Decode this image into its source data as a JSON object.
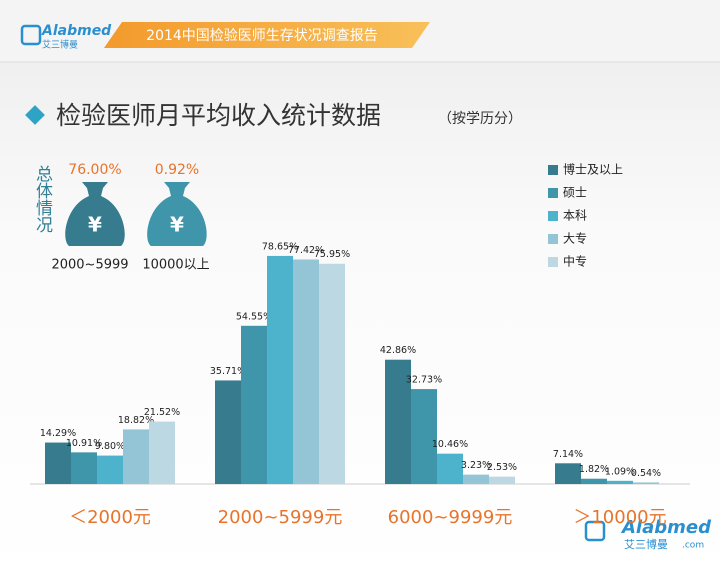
{
  "header": {
    "logo": "Alabmed",
    "logo_sub": "艾三博曼",
    "banner": "2014中国检验医师生存状况调查报告"
  },
  "title": "检验医师月平均收入统计数据",
  "subtitle": "（按学历分）",
  "summary": {
    "label": "总体情况",
    "items": [
      {
        "percent": "76.00%",
        "symbol": "¥",
        "range": "2000~5999"
      },
      {
        "percent": "0.92%",
        "symbol": "¥",
        "range": "10000以上"
      }
    ]
  },
  "chart_data": {
    "type": "bar",
    "categories": [
      "＜2000元",
      "2000~5999元",
      "6000~9999元",
      "＞10000元"
    ],
    "series": [
      {
        "name": "博士及以上",
        "color": "#367b8e",
        "values": [
          14.29,
          35.71,
          42.86,
          7.14
        ],
        "value_labels": [
          "14.29%",
          "35.71%",
          "42.86%",
          "7.14%"
        ]
      },
      {
        "name": "硕士",
        "color": "#3f95aa",
        "values": [
          10.91,
          54.55,
          32.73,
          1.82
        ],
        "value_labels": [
          "10.91%",
          "54.55%",
          "32.73%",
          "1.82%"
        ]
      },
      {
        "name": "本科",
        "color": "#4db3cc",
        "values": [
          9.8,
          78.65,
          10.46,
          1.09
        ],
        "value_labels": [
          "9.80%",
          "78.65%",
          "10.46%",
          "1.09%"
        ]
      },
      {
        "name": "大专",
        "color": "#93c5d6",
        "values": [
          18.82,
          77.42,
          3.23,
          0.54
        ],
        "value_labels": [
          "18.82%",
          "77.42%",
          "3.23%",
          "0.54%"
        ]
      },
      {
        "name": "中专",
        "color": "#bcd9e3",
        "values": [
          21.52,
          75.95,
          2.53,
          0
        ],
        "value_labels": [
          "21.52%",
          "75.95%",
          "2.53%",
          null
        ]
      }
    ],
    "legend": "right"
  },
  "watermark": {
    "logo": "Alabmed",
    "logo_sub": "艾三博曼",
    "suffix": ".com"
  }
}
